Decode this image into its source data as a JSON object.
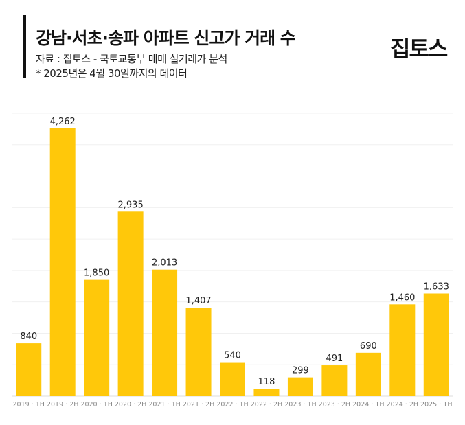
{
  "header": {
    "title": "강남·서초·송파 아파트 신고가 거래 수",
    "source": "자료 : 집토스 - 국토교통부 매매 실거래가 분석",
    "note": "* 2025년은 4월 30일까지의 데이터",
    "logo": "집토스"
  },
  "chart_data": {
    "type": "bar",
    "title": "강남·서초·송파 아파트 신고가 거래 수",
    "xlabel": "",
    "ylabel": "",
    "ylim": [
      0,
      4500
    ],
    "grid": true,
    "bar_color": "#FFC80A",
    "categories": [
      "2019 · 1H",
      "2019 · 2H",
      "2020 · 1H",
      "2020 · 2H",
      "2021 · 1H",
      "2021 · 2H",
      "2022 · 1H",
      "2022 · 2H",
      "2023 · 1H",
      "2023 · 2H",
      "2024 · 1H",
      "2024 · 2H",
      "2025 · 1H"
    ],
    "values": [
      840,
      4262,
      1850,
      2935,
      2013,
      1407,
      540,
      118,
      299,
      491,
      690,
      1460,
      1633
    ],
    "labels": [
      "840",
      "4,262",
      "1,850",
      "2,935",
      "2,013",
      "1,407",
      "540",
      "118",
      "299",
      "491",
      "690",
      "1,460",
      "1,633"
    ]
  }
}
